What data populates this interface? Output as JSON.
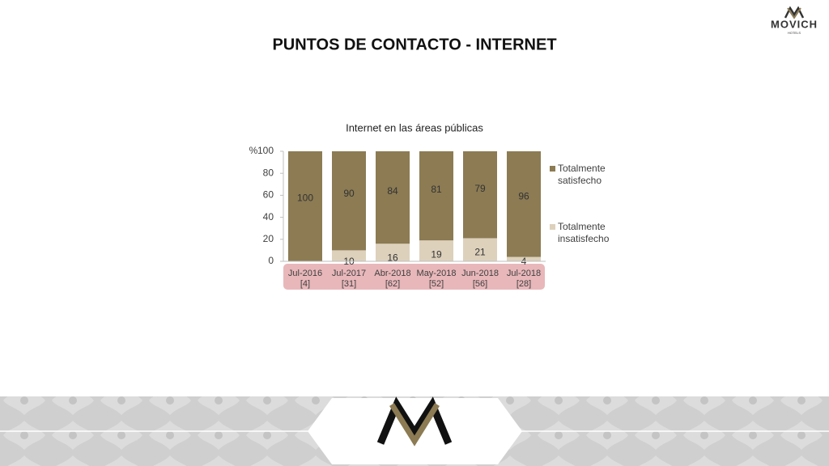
{
  "brand": {
    "name": "MOVICH",
    "tagline": "HOTELS"
  },
  "header": {
    "title": "PUNTOS DE CONTACTO - INTERNET"
  },
  "chart_data": {
    "type": "stacked_bar",
    "title": "Internet en las áreas públicas",
    "y_label": "%",
    "categories": [
      "Jul-2016",
      "Jul-2017",
      "Abr-2018",
      "May-2018",
      "Jun-2018",
      "Jul-2018"
    ],
    "sample_sizes": [
      "[4]",
      "[31]",
      "[62]",
      "[52]",
      "[56]",
      "[28]"
    ],
    "series": [
      {
        "name": "Totalmente insatisfecho",
        "color": "#ddd1bc",
        "values": [
          0,
          10,
          16,
          19,
          21,
          4
        ]
      },
      {
        "name": "Totalmente satisfecho",
        "color": "#8c7b53",
        "values": [
          100,
          90,
          84,
          81,
          79,
          96
        ]
      }
    ],
    "ylim": [
      0,
      100
    ],
    "yticks": [
      0,
      20,
      40,
      60,
      80,
      100
    ],
    "legend": "right"
  }
}
